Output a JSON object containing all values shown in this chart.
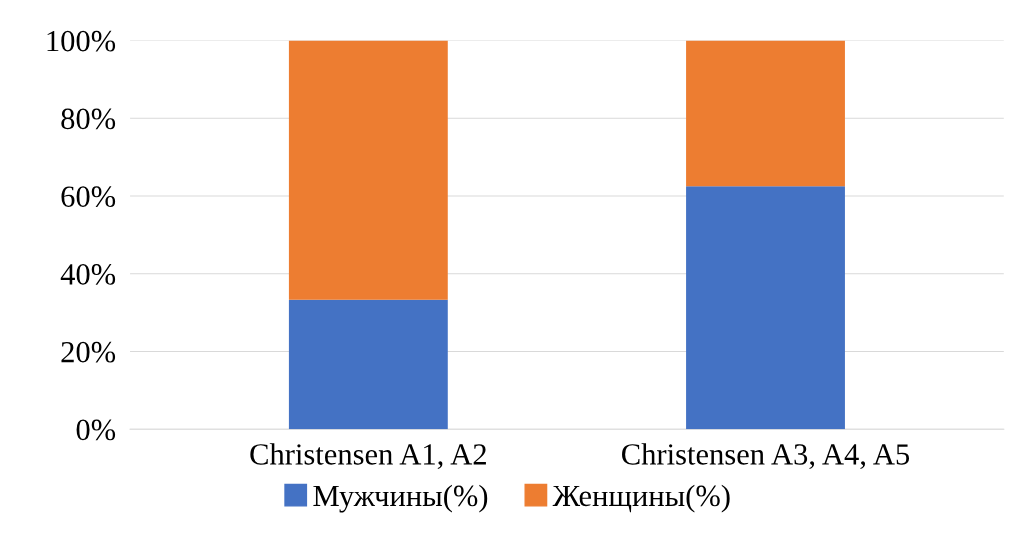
{
  "chart_data": {
    "type": "bar",
    "stacked": true,
    "categories": [
      "Christensen A1, A2",
      "Christensen A3, A4, A5"
    ],
    "series": [
      {
        "name": "Мужчины(%)",
        "color": "#4472c4",
        "values": [
          33.3,
          62.5
        ]
      },
      {
        "name": "Женщины(%)",
        "color": "#ed7d31",
        "values": [
          66.7,
          37.5
        ]
      }
    ],
    "ylim": [
      0,
      100
    ],
    "yticks": [
      {
        "value": 0,
        "label": "0%"
      },
      {
        "value": 20,
        "label": "20%"
      },
      {
        "value": 40,
        "label": "40%"
      },
      {
        "value": 60,
        "label": "60%"
      },
      {
        "value": 80,
        "label": "80%"
      },
      {
        "value": 100,
        "label": "100%"
      }
    ],
    "grid": "y",
    "legend": "bottom"
  }
}
